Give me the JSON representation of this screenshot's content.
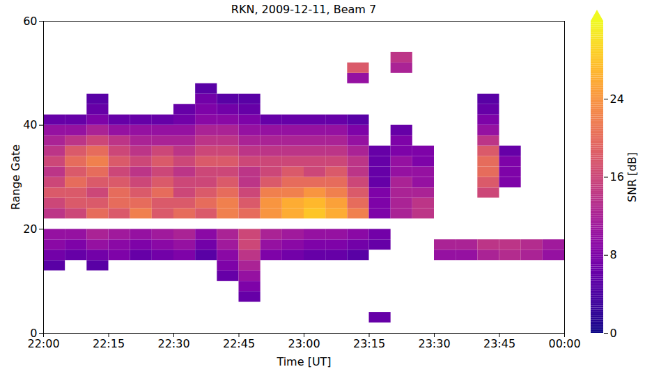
{
  "chart_data": {
    "type": "heatmap",
    "title": "RKN, 2009-12-11, Beam 7",
    "x_label": "Time [UT]",
    "y_label": "Range Gate",
    "color": "plasma",
    "x_bins": [
      "2009-12-11T22:00Z",
      "2009-12-11T22:05Z",
      "2009-12-11T22:10Z",
      "2009-12-11T22:15Z",
      "2009-12-11T22:20Z",
      "2009-12-11T22:25Z",
      "2009-12-11T22:30Z",
      "2009-12-11T22:35Z",
      "2009-12-11T22:40Z",
      "2009-12-11T22:45Z",
      "2009-12-11T22:50Z",
      "2009-12-11T22:55Z",
      "2009-12-11T23:00Z",
      "2009-12-11T23:05Z",
      "2009-12-11T23:10Z",
      "2009-12-11T23:15Z",
      "2009-12-11T23:20Z",
      "2009-12-11T23:25Z",
      "2009-12-11T23:30Z",
      "2009-12-11T23:35Z",
      "2009-12-11T23:40Z",
      "2009-12-11T23:45Z",
      "2009-12-11T23:50Z",
      "2009-12-11T23:55Z",
      "2009-12-12T00:00Z"
    ],
    "y_bins": [
      0,
      2,
      4,
      6,
      8,
      10,
      12,
      14,
      16,
      18,
      20,
      22,
      24,
      26,
      28,
      30,
      32,
      34,
      36,
      38,
      40,
      42,
      44,
      46,
      48,
      50,
      52,
      54,
      56,
      58,
      60
    ],
    "snr": [
      [
        null,
        null,
        null,
        null,
        null,
        null,
        null,
        null,
        null,
        null,
        null,
        null,
        null,
        null,
        null,
        null,
        null,
        null,
        null,
        null,
        null,
        null,
        null,
        null
      ],
      [
        null,
        null,
        null,
        null,
        null,
        null,
        null,
        null,
        null,
        null,
        null,
        null,
        null,
        null,
        null,
        6,
        null,
        null,
        null,
        null,
        null,
        null,
        null,
        null
      ],
      [
        null,
        null,
        null,
        null,
        null,
        null,
        null,
        null,
        null,
        null,
        null,
        null,
        null,
        null,
        null,
        null,
        null,
        null,
        null,
        null,
        null,
        null,
        null,
        null
      ],
      [
        null,
        null,
        null,
        null,
        null,
        null,
        null,
        null,
        null,
        6,
        null,
        null,
        null,
        null,
        null,
        null,
        null,
        null,
        null,
        null,
        null,
        null,
        null,
        null
      ],
      [
        null,
        null,
        null,
        null,
        null,
        null,
        null,
        null,
        null,
        8,
        null,
        null,
        null,
        null,
        null,
        null,
        null,
        null,
        null,
        null,
        null,
        null,
        null,
        null
      ],
      [
        null,
        null,
        null,
        null,
        null,
        null,
        null,
        null,
        6,
        10,
        null,
        null,
        null,
        null,
        null,
        null,
        null,
        null,
        null,
        null,
        null,
        null,
        null,
        null
      ],
      [
        5,
        null,
        5,
        null,
        null,
        null,
        null,
        null,
        8,
        12,
        null,
        null,
        null,
        null,
        null,
        null,
        null,
        null,
        null,
        null,
        null,
        null,
        null,
        null
      ],
      [
        7,
        6,
        7,
        8,
        6,
        7,
        8,
        5,
        9,
        14,
        8,
        7,
        6,
        6,
        5,
        null,
        null,
        null,
        10,
        10,
        12,
        13,
        12,
        10
      ],
      [
        9,
        8,
        10,
        9,
        8,
        9,
        10,
        7,
        11,
        16,
        10,
        9,
        8,
        8,
        7,
        6,
        null,
        null,
        12,
        12,
        14,
        14,
        13,
        11
      ],
      [
        10,
        10,
        12,
        11,
        10,
        11,
        12,
        9,
        12,
        16,
        12,
        11,
        10,
        10,
        9,
        7,
        null,
        null,
        null,
        null,
        null,
        null,
        null,
        null
      ],
      [
        null,
        null,
        null,
        null,
        null,
        null,
        null,
        null,
        null,
        null,
        null,
        null,
        null,
        null,
        null,
        null,
        null,
        null,
        null,
        null,
        null,
        null,
        null,
        null
      ],
      [
        14,
        16,
        20,
        18,
        22,
        18,
        20,
        18,
        22,
        20,
        24,
        26,
        28,
        26,
        22,
        8,
        12,
        14,
        null,
        null,
        null,
        null,
        null,
        null
      ],
      [
        16,
        18,
        18,
        20,
        20,
        18,
        18,
        20,
        22,
        18,
        24,
        26,
        27,
        25,
        20,
        8,
        12,
        14,
        null,
        null,
        null,
        null,
        null,
        null
      ],
      [
        18,
        18,
        16,
        20,
        18,
        20,
        16,
        18,
        20,
        16,
        22,
        22,
        24,
        22,
        18,
        8,
        12,
        12,
        null,
        null,
        16,
        null,
        null,
        null
      ],
      [
        16,
        20,
        18,
        18,
        16,
        18,
        16,
        16,
        18,
        14,
        18,
        20,
        20,
        20,
        16,
        6,
        12,
        10,
        null,
        null,
        18,
        8,
        null,
        null
      ],
      [
        14,
        18,
        20,
        16,
        14,
        16,
        14,
        16,
        16,
        14,
        16,
        18,
        16,
        18,
        14,
        6,
        10,
        10,
        null,
        null,
        20,
        8,
        null,
        null
      ],
      [
        16,
        20,
        22,
        18,
        16,
        18,
        16,
        18,
        18,
        16,
        16,
        16,
        16,
        16,
        14,
        6,
        10,
        8,
        null,
        null,
        20,
        8,
        null,
        null
      ],
      [
        14,
        18,
        20,
        16,
        14,
        16,
        14,
        16,
        16,
        14,
        14,
        14,
        14,
        14,
        12,
        6,
        8,
        8,
        null,
        null,
        18,
        6,
        null,
        null
      ],
      [
        12,
        14,
        16,
        14,
        12,
        12,
        12,
        14,
        14,
        12,
        12,
        12,
        12,
        12,
        10,
        null,
        8,
        null,
        null,
        null,
        14,
        null,
        null,
        null
      ],
      [
        10,
        10,
        12,
        10,
        10,
        10,
        10,
        12,
        12,
        10,
        10,
        10,
        10,
        10,
        8,
        null,
        6,
        null,
        null,
        null,
        10,
        null,
        null,
        null
      ],
      [
        6,
        6,
        8,
        6,
        6,
        6,
        7,
        9,
        9,
        8,
        6,
        6,
        6,
        6,
        5,
        null,
        null,
        null,
        null,
        null,
        8,
        null,
        null,
        null
      ],
      [
        null,
        null,
        6,
        null,
        null,
        null,
        6,
        8,
        7,
        6,
        null,
        null,
        null,
        null,
        null,
        null,
        null,
        null,
        null,
        null,
        6,
        null,
        null,
        null
      ],
      [
        null,
        null,
        5,
        null,
        null,
        null,
        null,
        7,
        5,
        5,
        null,
        null,
        null,
        null,
        null,
        null,
        null,
        null,
        null,
        null,
        5,
        null,
        null,
        null
      ],
      [
        null,
        null,
        null,
        null,
        null,
        null,
        null,
        5,
        null,
        null,
        null,
        null,
        null,
        null,
        null,
        null,
        null,
        null,
        null,
        null,
        null,
        null,
        null,
        null
      ],
      [
        null,
        null,
        null,
        null,
        null,
        null,
        null,
        null,
        null,
        null,
        null,
        null,
        null,
        null,
        10,
        null,
        null,
        null,
        null,
        null,
        null,
        null,
        null,
        null
      ],
      [
        null,
        null,
        null,
        null,
        null,
        null,
        null,
        null,
        null,
        null,
        null,
        null,
        null,
        null,
        18,
        null,
        12,
        null,
        null,
        null,
        null,
        null,
        null,
        null
      ],
      [
        null,
        null,
        null,
        null,
        null,
        null,
        null,
        null,
        null,
        null,
        null,
        null,
        null,
        null,
        null,
        null,
        14,
        null,
        null,
        null,
        null,
        null,
        null,
        null
      ],
      [
        null,
        null,
        null,
        null,
        null,
        null,
        null,
        null,
        null,
        null,
        null,
        null,
        null,
        null,
        null,
        null,
        null,
        null,
        null,
        null,
        null,
        null,
        null,
        null
      ],
      [
        null,
        null,
        null,
        null,
        null,
        null,
        null,
        null,
        null,
        null,
        null,
        null,
        null,
        null,
        null,
        null,
        null,
        null,
        null,
        null,
        null,
        null,
        null,
        null
      ],
      [
        null,
        null,
        null,
        null,
        null,
        null,
        null,
        null,
        null,
        null,
        null,
        null,
        null,
        null,
        null,
        null,
        null,
        null,
        null,
        null,
        null,
        null,
        null,
        null
      ]
    ],
    "xlim": [
      "2009-12-11T22:00Z",
      "2009-12-12T00:00Z"
    ],
    "xticks": [
      {
        "value": "2009-12-11T22:00Z",
        "label": "22:00"
      },
      {
        "value": "2009-12-11T22:15Z",
        "label": "22:15"
      },
      {
        "value": "2009-12-11T22:30Z",
        "label": "22:30"
      },
      {
        "value": "2009-12-11T22:45Z",
        "label": "22:45"
      },
      {
        "value": "2009-12-11T23:00Z",
        "label": "23:00"
      },
      {
        "value": "2009-12-11T23:15Z",
        "label": "23:15"
      },
      {
        "value": "2009-12-11T23:30Z",
        "label": "23:30"
      },
      {
        "value": "2009-12-11T23:45Z",
        "label": "23:45"
      },
      {
        "value": "2009-12-12T00:00Z",
        "label": "00:00"
      }
    ],
    "ylim": [
      0,
      60
    ],
    "yticks": [
      0,
      20,
      40,
      60
    ],
    "colorbar": {
      "label": "SNR [dB]",
      "clim": [
        0,
        32
      ],
      "ticks": [
        0,
        8,
        16,
        24
      ]
    }
  }
}
